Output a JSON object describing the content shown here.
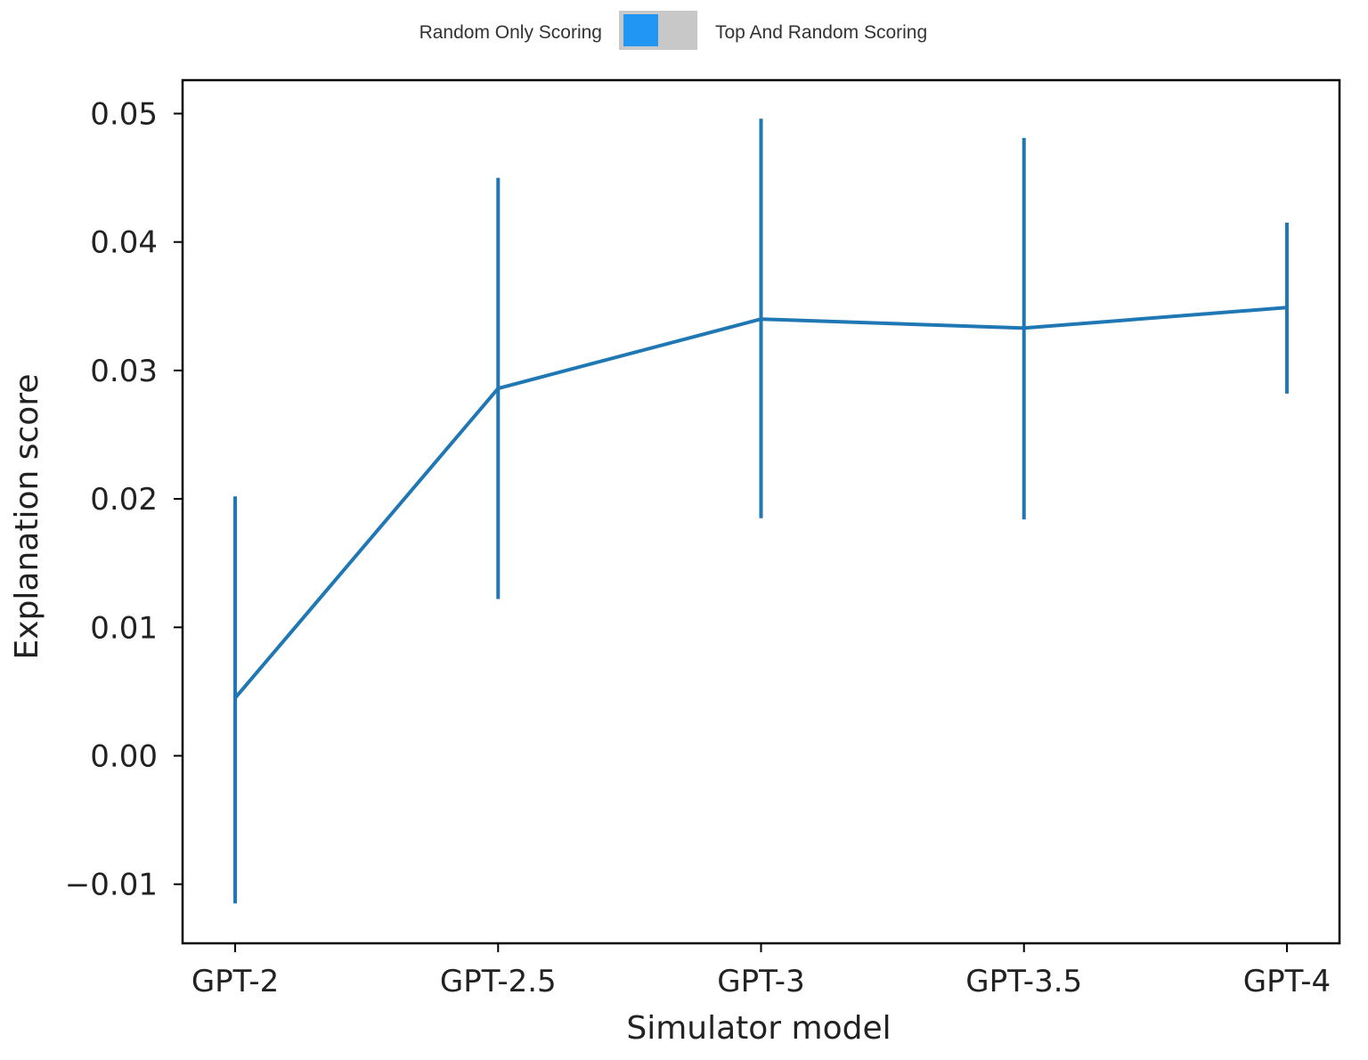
{
  "toggle": {
    "left_label": "Random Only Scoring",
    "right_label": "Top And Random Scoring",
    "state": "left",
    "knob_color": "#2196f3",
    "track_color": "#c8c8c8"
  },
  "chart_data": {
    "type": "line",
    "categories": [
      "GPT-2",
      "GPT-2.5",
      "GPT-3",
      "GPT-3.5",
      "GPT-4"
    ],
    "series": [
      {
        "values": [
          0.0045,
          0.0286,
          0.034,
          0.0333,
          0.0349
        ],
        "error_low": [
          -0.0115,
          0.0122,
          0.0185,
          0.0184,
          0.0282
        ],
        "error_high": [
          0.0202,
          0.045,
          0.0496,
          0.0481,
          0.0415
        ],
        "color": "#1f77b4"
      }
    ],
    "xlabel": "Simulator model",
    "ylabel": "Explanation score",
    "ylim": [
      -0.0146,
      0.0526
    ],
    "yticks": [
      -0.01,
      0.0,
      0.01,
      0.02,
      0.03,
      0.04,
      0.05
    ],
    "ytick_labels": [
      "−0.01",
      "0.00",
      "0.01",
      "0.02",
      "0.03",
      "0.04",
      "0.05"
    ],
    "grid": false
  }
}
